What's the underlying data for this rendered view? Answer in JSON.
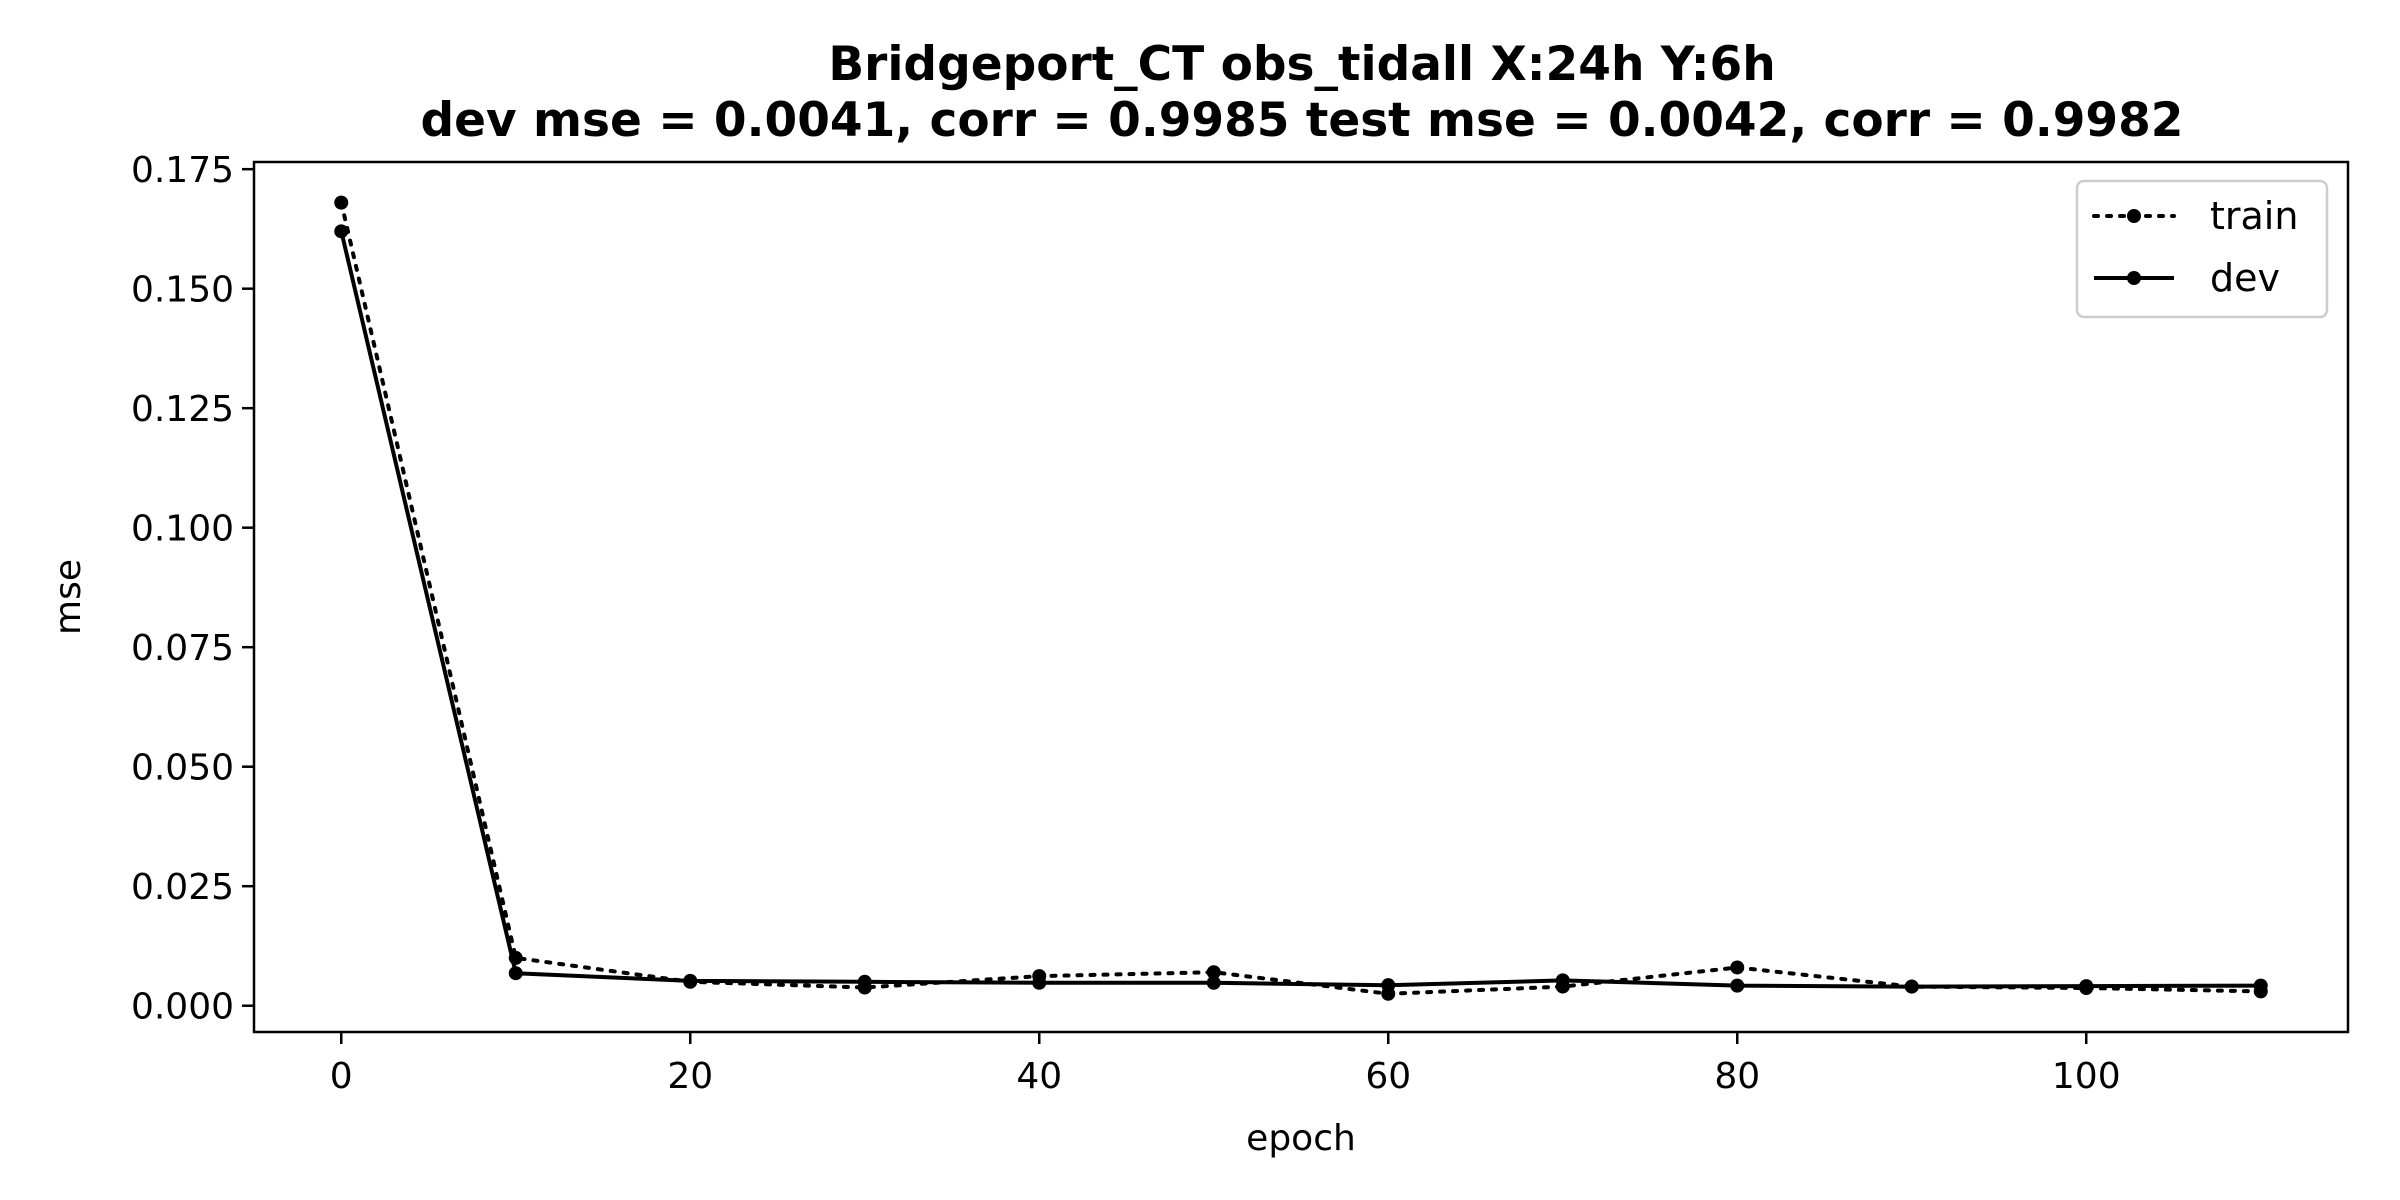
{
  "chart_data": {
    "type": "line",
    "title": "Bridgeport_CT   obs_tidall   X:24h   Y:6h",
    "subtitle": "dev mse = 0.0041, corr = 0.9985   test mse = 0.0042, corr = 0.9982",
    "xlabel": "epoch",
    "ylabel": "mse",
    "xlim": [
      -5,
      115
    ],
    "ylim": [
      -0.0055,
      0.1765
    ],
    "x_ticks": [
      0,
      20,
      40,
      60,
      80,
      100
    ],
    "x_tick_labels": [
      "0",
      "20",
      "40",
      "60",
      "80",
      "100"
    ],
    "y_ticks": [
      0.0,
      0.025,
      0.05,
      0.075,
      0.1,
      0.125,
      0.15,
      0.175
    ],
    "y_tick_labels": [
      "0.000",
      "0.025",
      "0.050",
      "0.075",
      "0.100",
      "0.125",
      "0.150",
      "0.175"
    ],
    "grid": false,
    "legend_position": "top-right",
    "x": [
      0,
      10,
      20,
      30,
      40,
      50,
      60,
      70,
      80,
      90,
      100,
      110
    ],
    "series": [
      {
        "name": "train",
        "style": "dotted",
        "color": "#000000",
        "values": [
          0.168,
          0.01,
          0.005,
          0.0038,
          0.0062,
          0.007,
          0.0025,
          0.004,
          0.008,
          0.004,
          0.0037,
          0.003
        ]
      },
      {
        "name": "dev",
        "style": "solid",
        "color": "#000000",
        "values": [
          0.162,
          0.0068,
          0.0052,
          0.005,
          0.0048,
          0.0048,
          0.0043,
          0.0053,
          0.0042,
          0.004,
          0.0041,
          0.0042
        ]
      }
    ]
  }
}
